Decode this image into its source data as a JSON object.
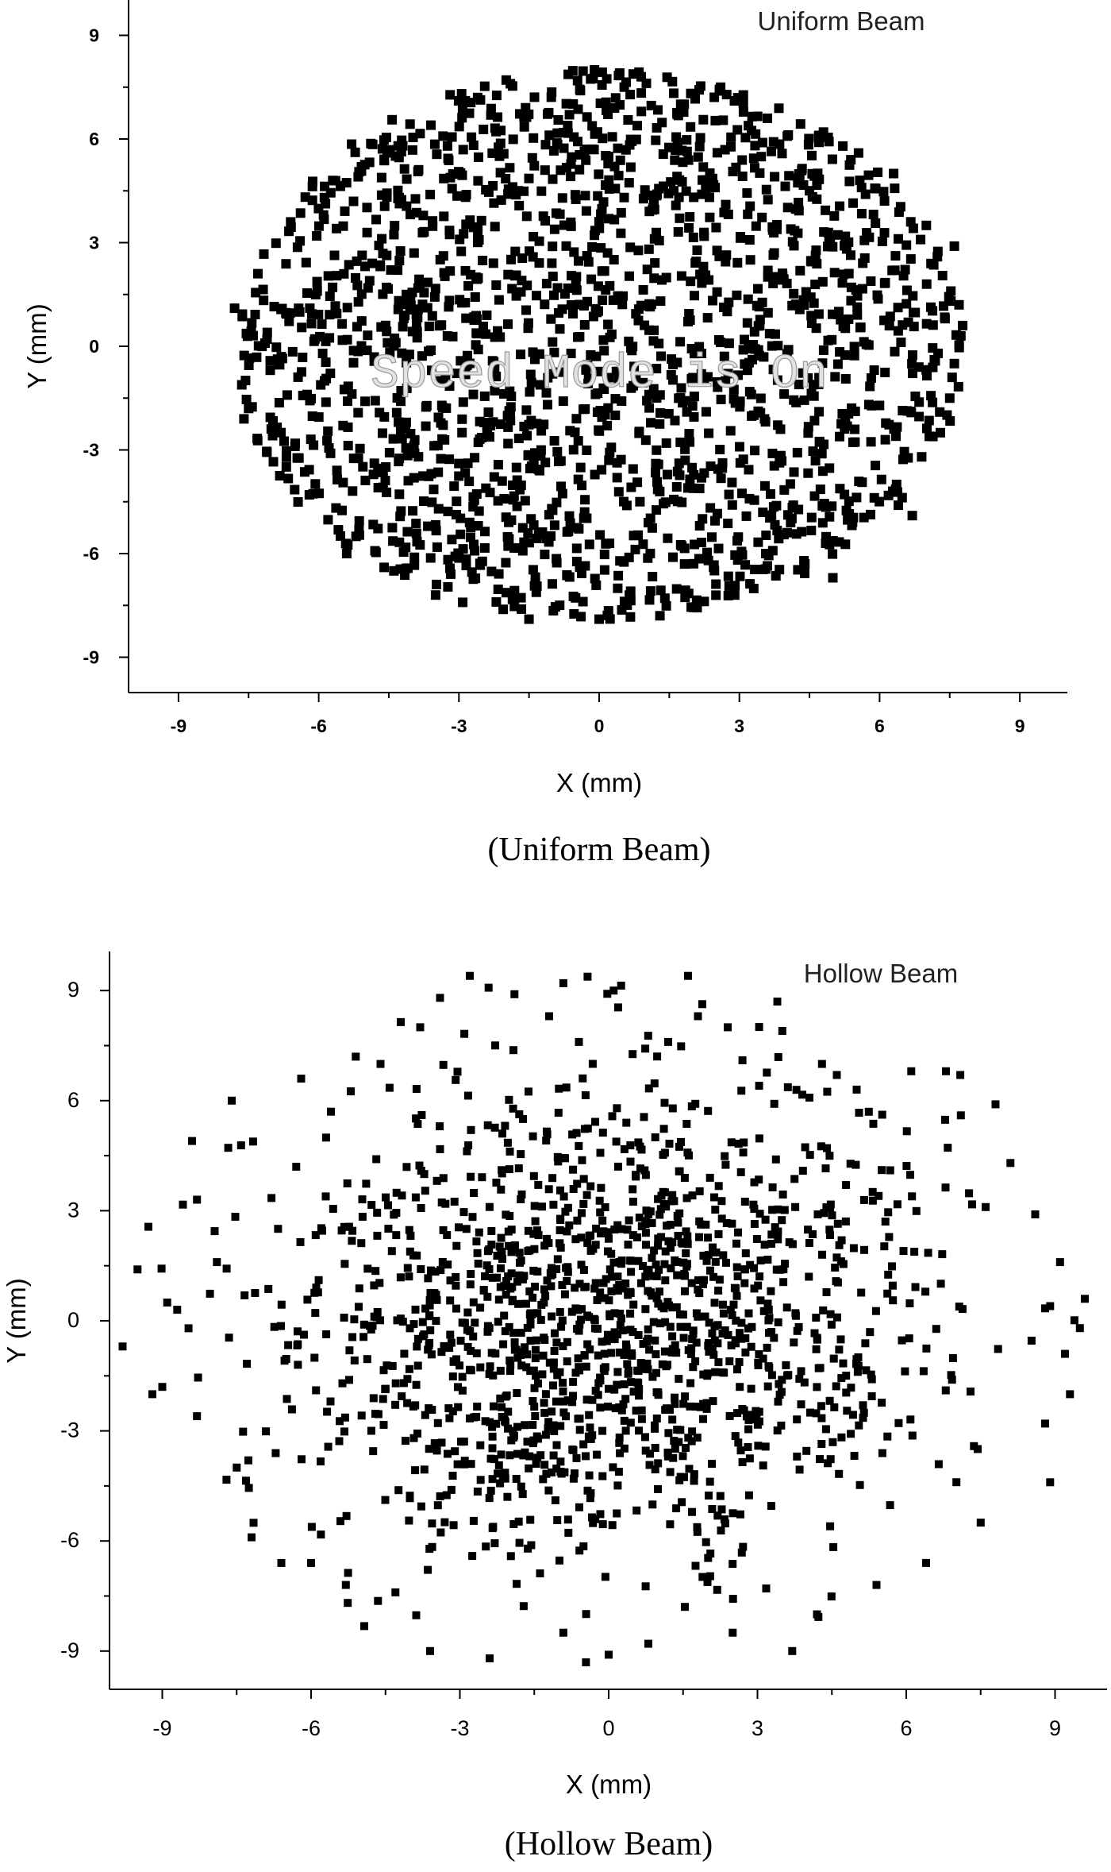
{
  "chart_data": [
    {
      "type": "scatter",
      "title": "Uniform Beam",
      "caption": "(Uniform Beam)",
      "watermark": "Speed Mode is On",
      "xlabel": "X (mm)",
      "ylabel": "Y (mm)",
      "xlim": [
        -10,
        10
      ],
      "ylim": [
        -10,
        10
      ],
      "xticks": [
        "-9",
        "-6",
        "-3",
        "0",
        "3",
        "6",
        "9"
      ],
      "yticks": [
        "9",
        "6",
        "3",
        "0",
        "-3",
        "-6",
        "-9"
      ],
      "distribution": {
        "shape": "uniform-disc",
        "rx": 7.8,
        "ry": 8.0,
        "count": 1800
      },
      "series": [
        {
          "values": [
            [
              -7.8,
              1.1
            ],
            [
              -7.6,
              -2.1
            ],
            [
              -7.5,
              -1.8
            ],
            [
              -7.3,
              2.1
            ],
            [
              -6.6,
              3.6
            ],
            [
              -6.2,
              -4.3
            ],
            [
              -5.7,
              4.8
            ],
            [
              -5.4,
              -6.0
            ],
            [
              -5.2,
              -5.5
            ],
            [
              -4.3,
              5.8
            ],
            [
              -4.6,
              -6.4
            ],
            [
              -3.6,
              6.4
            ],
            [
              -3.5,
              -7.2
            ],
            [
              -2.6,
              7.2
            ],
            [
              -2.2,
              -7.4
            ],
            [
              -1.9,
              7.6
            ],
            [
              -1.5,
              -7.9
            ],
            [
              -0.4,
              7.4
            ],
            [
              -0.1,
              8.0
            ],
            [
              0.0,
              -7.9
            ],
            [
              0.9,
              7.8
            ],
            [
              1.3,
              -7.8
            ],
            [
              2.6,
              7.5
            ],
            [
              2.9,
              -7.2
            ],
            [
              3.6,
              6.6
            ],
            [
              4.4,
              -6.3
            ],
            [
              4.8,
              6.2
            ],
            [
              5.0,
              -6.7
            ],
            [
              5.7,
              4.4
            ],
            [
              6.3,
              5.0
            ],
            [
              6.4,
              -4.6
            ],
            [
              6.7,
              -4.9
            ],
            [
              7.0,
              3.5
            ],
            [
              7.3,
              -2.5
            ],
            [
              7.5,
              -1.5
            ],
            [
              7.6,
              2.9
            ],
            [
              7.7,
              1.2
            ],
            [
              7.6,
              -0.5
            ],
            [
              7.4,
              0.8
            ],
            [
              -6.8,
              -0.3
            ],
            [
              -7.1,
              0.4
            ],
            [
              6.9,
              -3.2
            ]
          ]
        }
      ]
    },
    {
      "type": "scatter",
      "title": "Hollow Beam",
      "caption": "(Hollow Beam)",
      "xlabel": "X (mm)",
      "ylabel": "Y (mm)",
      "xlim": [
        -10,
        10
      ],
      "ylim": [
        -10,
        10
      ],
      "xticks": [
        "-9",
        "-6",
        "-3",
        "0",
        "3",
        "6",
        "9"
      ],
      "yticks": [
        "9",
        "6",
        "3",
        "0",
        "-3",
        "-6",
        "-9"
      ],
      "distribution": {
        "shape": "gaussian-core",
        "sigma": 3.2,
        "max_r": 9.8,
        "count": 1500
      },
      "series": [
        {
          "values": [
            [
              -9.8,
              -0.7
            ],
            [
              -9.5,
              1.4
            ],
            [
              -9.2,
              -2.0
            ],
            [
              -9.0,
              -1.8
            ],
            [
              -8.4,
              4.9
            ],
            [
              -8.3,
              3.3
            ],
            [
              -8.3,
              -2.6
            ],
            [
              -7.9,
              1.6
            ],
            [
              -7.6,
              6.0
            ],
            [
              -7.5,
              -4.0
            ],
            [
              -7.2,
              -5.9
            ],
            [
              -6.6,
              -6.6
            ],
            [
              -6.3,
              4.2
            ],
            [
              -6.2,
              6.6
            ],
            [
              -6.0,
              -6.6
            ],
            [
              -5.6,
              5.7
            ],
            [
              -5.3,
              -7.2
            ],
            [
              -5.1,
              7.2
            ],
            [
              -4.3,
              -7.4
            ],
            [
              -4.6,
              7.0
            ],
            [
              -3.8,
              8.0
            ],
            [
              -3.4,
              8.8
            ],
            [
              -3.6,
              -9.0
            ],
            [
              -2.8,
              9.4
            ],
            [
              -2.4,
              -9.2
            ],
            [
              -1.9,
              8.9
            ],
            [
              -1.2,
              8.3
            ],
            [
              -0.6,
              7.6
            ],
            [
              0.1,
              9.0
            ],
            [
              0.0,
              -9.1
            ],
            [
              0.8,
              -8.8
            ],
            [
              1.2,
              7.6
            ],
            [
              1.6,
              9.4
            ],
            [
              1.8,
              8.3
            ],
            [
              2.4,
              8.0
            ],
            [
              2.5,
              -8.5
            ],
            [
              3.4,
              8.7
            ],
            [
              3.5,
              7.9
            ],
            [
              3.7,
              -9.0
            ],
            [
              4.3,
              7.0
            ],
            [
              4.6,
              6.7
            ],
            [
              4.2,
              -8.0
            ],
            [
              5.0,
              6.3
            ],
            [
              5.4,
              -7.2
            ],
            [
              6.1,
              6.8
            ],
            [
              6.4,
              -6.6
            ],
            [
              6.8,
              6.8
            ],
            [
              7.1,
              5.6
            ],
            [
              7.5,
              -5.5
            ],
            [
              7.8,
              5.9
            ],
            [
              8.1,
              4.3
            ],
            [
              8.6,
              2.9
            ],
            [
              8.8,
              -2.8
            ],
            [
              8.9,
              0.4
            ],
            [
              9.1,
              1.6
            ],
            [
              9.2,
              -0.9
            ],
            [
              9.3,
              -2.0
            ],
            [
              9.5,
              -0.2
            ],
            [
              9.6,
              0.6
            ],
            [
              8.9,
              -4.4
            ],
            [
              -8.7,
              0.3
            ],
            [
              7.6,
              3.1
            ]
          ]
        }
      ]
    }
  ]
}
